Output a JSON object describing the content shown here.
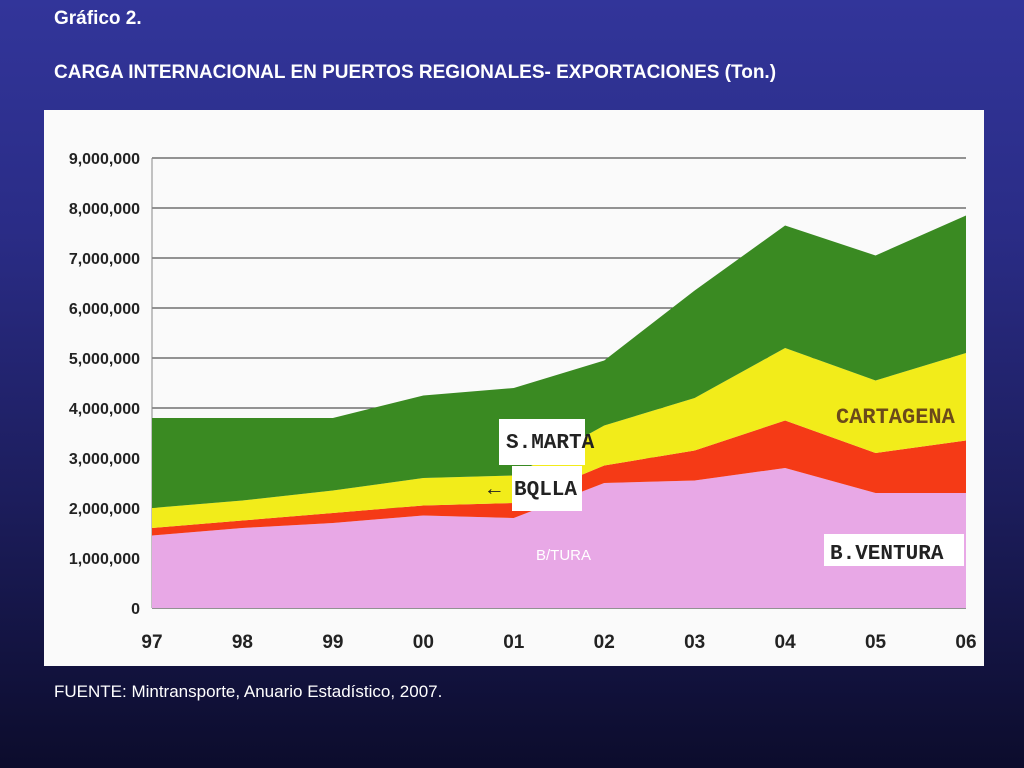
{
  "header": {
    "label": "Gráfico 2.",
    "title": "CARGA INTERNACIONAL EN PUERTOS REGIONALES- EXPORTACIONES (Ton.)"
  },
  "footer": {
    "source": "FUENTE:  Mintransporte, Anuario Estadístico, 2007."
  },
  "chart_data": {
    "type": "area",
    "stacked": true,
    "title": "CARGA INTERNACIONAL EN PUERTOS REGIONALES- EXPORTACIONES (Ton.)",
    "xlabel": "",
    "ylabel": "",
    "categories": [
      "97",
      "98",
      "99",
      "00",
      "01",
      "02",
      "03",
      "04",
      "05",
      "06"
    ],
    "y_ticks": [
      "0",
      "1,000,000",
      "2,000,000",
      "3,000,000",
      "4,000,000",
      "5,000,000",
      "6,000,000",
      "7,000,000",
      "8,000,000",
      "9,000,000"
    ],
    "ylim": [
      0,
      9000000
    ],
    "grid": true,
    "series": [
      {
        "name": "B.VENTURA",
        "color": "#e8a8e6",
        "values": [
          1450000,
          1600000,
          1700000,
          1850000,
          1800000,
          2500000,
          2550000,
          2800000,
          2300000,
          2300000
        ]
      },
      {
        "name": "BQLLA",
        "color": "#f53a16",
        "values": [
          150000,
          150000,
          200000,
          200000,
          300000,
          350000,
          600000,
          950000,
          800000,
          1050000
        ]
      },
      {
        "name": "CARTAGENA",
        "color": "#f2ec1a",
        "values": [
          400000,
          400000,
          450000,
          550000,
          550000,
          800000,
          1050000,
          1450000,
          1450000,
          1750000
        ]
      },
      {
        "name": "S.MARTA",
        "color": "#3a8a22",
        "values": [
          1800000,
          1650000,
          1450000,
          1650000,
          1750000,
          1300000,
          2150000,
          2450000,
          2500000,
          2750000
        ]
      }
    ],
    "annotations": {
      "smarta": "S.MARTA",
      "bqlla": "BQLLA",
      "cartagena": "CARTAGENA",
      "bventura": "B.VENTURA",
      "bventura_small": "B/TURA"
    },
    "colors": {
      "bventura": "#e8a8e6",
      "bqlla": "#f53a16",
      "cartagena": "#f2ec1a",
      "smarta": "#3a8a22"
    }
  }
}
